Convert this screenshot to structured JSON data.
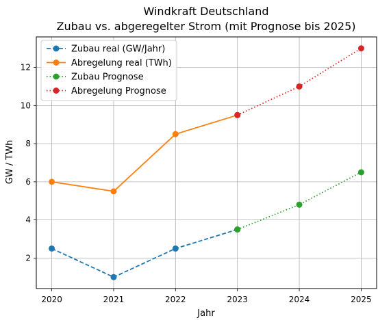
{
  "chart_data": {
    "type": "line",
    "title": "Windkraft Deutschland",
    "subtitle": "Zubau vs. abgeregelter Strom (mit Prognose bis 2025)",
    "xlabel": "Jahr",
    "ylabel": "GW / TWh",
    "xlim": [
      2019.75,
      2025.25
    ],
    "ylim": [
      0.4,
      13.6
    ],
    "x_ticks": [
      "2020",
      "2021",
      "2022",
      "2023",
      "2024",
      "2025"
    ],
    "y_ticks": [
      "2",
      "4",
      "6",
      "8",
      "10",
      "12"
    ],
    "grid": true,
    "legend_position": "top-left",
    "series": [
      {
        "name": "Zubau real (GW/Jahr)",
        "style": "dashed",
        "color": "#1f77b4",
        "x": [
          2020,
          2021,
          2022,
          2023
        ],
        "values": [
          2.5,
          1.0,
          2.5,
          3.5
        ]
      },
      {
        "name": "Abregelung real (TWh)",
        "style": "solid",
        "color": "#ff7f0e",
        "x": [
          2020,
          2021,
          2022,
          2023
        ],
        "values": [
          6.0,
          5.5,
          8.5,
          9.5
        ]
      },
      {
        "name": "Zubau Prognose",
        "style": "dotted",
        "color": "#2ca02c",
        "x": [
          2023,
          2024,
          2025
        ],
        "values": [
          3.5,
          4.8,
          6.5
        ]
      },
      {
        "name": "Abregelung Prognose",
        "style": "dotted",
        "color": "#d62728",
        "x": [
          2023,
          2024,
          2025
        ],
        "values": [
          9.5,
          11.0,
          13.0
        ]
      }
    ]
  }
}
